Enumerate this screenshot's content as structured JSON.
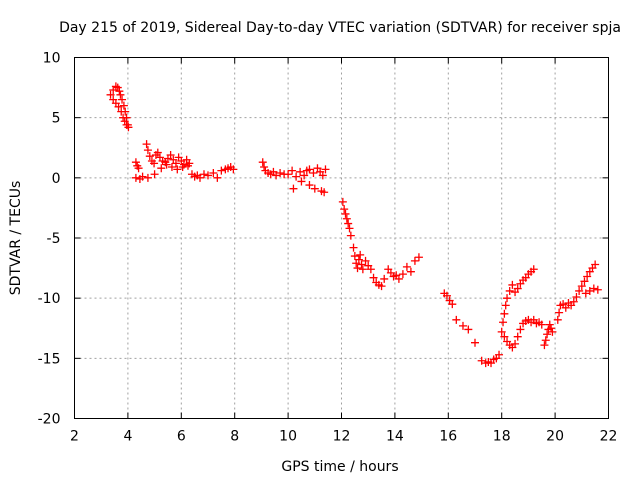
{
  "chart_data": {
    "type": "scatter",
    "title": "Day 215 of 2019, Sidereal Day-to-day VTEC variation (SDTVAR) for receiver spja",
    "xlabel": "GPS time / hours",
    "ylabel": "SDTVAR / TECUs",
    "xlim": [
      2,
      22
    ],
    "ylim": [
      -20,
      10
    ],
    "xticks": [
      2,
      4,
      6,
      8,
      10,
      12,
      14,
      16,
      18,
      20,
      22
    ],
    "xtick_labels": [
      "2",
      "4",
      "6",
      "8",
      "10",
      "12",
      "14",
      "16",
      "18",
      "20",
      "22"
    ],
    "yticks": [
      10,
      5,
      0,
      -5,
      -10,
      -15,
      -20
    ],
    "ytick_labels": [
      "10",
      "5",
      "0",
      "-5",
      "-10",
      "-15",
      "-20"
    ],
    "grid": true,
    "marker": "plus",
    "color": "#ff0000",
    "series": [
      {
        "name": "SDTVAR",
        "x": [
          3.35,
          3.45,
          3.55,
          3.62,
          3.68,
          3.72,
          3.78,
          3.85,
          3.9,
          3.95,
          4.0,
          3.45,
          3.55,
          3.65,
          3.75,
          3.82,
          3.88,
          3.95,
          4.02,
          4.3,
          4.35,
          4.4,
          4.3,
          4.45,
          4.55,
          4.7,
          4.75,
          4.82,
          4.9,
          4.98,
          5.05,
          5.12,
          5.2,
          5.3,
          5.4,
          5.5,
          5.6,
          5.7,
          5.8,
          5.9,
          6.0,
          6.1,
          6.2,
          6.3,
          4.75,
          5.0,
          5.25,
          5.45,
          5.65,
          5.85,
          6.05,
          6.25,
          6.4,
          6.5,
          6.6,
          6.7,
          6.85,
          7.0,
          7.2,
          7.35,
          7.5,
          7.65,
          7.75,
          7.85,
          7.95,
          9.05,
          9.1,
          9.15,
          9.25,
          9.35,
          9.45,
          9.55,
          9.7,
          9.85,
          10.0,
          10.15,
          10.3,
          10.45,
          10.6,
          10.7,
          10.8,
          10.95,
          11.1,
          11.2,
          11.3,
          11.4,
          10.2,
          10.5,
          10.8,
          11.0,
          11.25,
          11.35,
          12.05,
          12.1,
          12.15,
          12.2,
          12.25,
          12.3,
          12.35,
          12.45,
          12.5,
          12.55,
          12.6,
          12.65,
          12.7,
          12.75,
          12.8,
          12.9,
          13.0,
          13.1,
          13.2,
          13.3,
          13.4,
          13.5,
          13.6,
          13.75,
          13.85,
          13.95,
          14.05,
          14.15,
          14.3,
          14.45,
          14.6,
          14.75,
          14.9,
          15.85,
          15.95,
          16.05,
          16.15,
          16.3,
          16.55,
          16.75,
          17.0,
          17.25,
          17.4,
          17.5,
          17.6,
          17.7,
          17.8,
          17.9,
          18.0,
          18.05,
          18.1,
          18.15,
          18.2,
          18.3,
          18.4,
          18.5,
          18.6,
          18.7,
          18.8,
          18.9,
          19.0,
          19.1,
          19.2,
          18.1,
          18.2,
          18.3,
          18.4,
          18.5,
          18.6,
          18.7,
          18.8,
          18.9,
          19.0,
          19.1,
          19.2,
          19.3,
          19.4,
          19.5,
          19.6,
          19.65,
          19.7,
          19.75,
          19.8,
          19.85,
          19.9,
          20.1,
          20.15,
          20.2,
          20.3,
          20.4,
          20.5,
          20.6,
          20.7,
          20.8,
          20.9,
          21.0,
          21.1,
          21.2,
          21.3,
          21.4,
          21.5,
          21.15,
          21.3,
          21.45,
          21.6
        ],
        "y": [
          6.9,
          7.3,
          7.6,
          7.5,
          7.2,
          6.9,
          6.5,
          6.0,
          5.5,
          5.0,
          4.4,
          6.5,
          6.2,
          5.9,
          5.5,
          5.0,
          4.7,
          4.4,
          4.2,
          1.3,
          1.0,
          0.8,
          0.0,
          -0.1,
          0.1,
          2.8,
          2.3,
          1.8,
          1.4,
          1.2,
          1.9,
          2.1,
          1.7,
          1.4,
          1.3,
          1.6,
          1.9,
          1.5,
          1.2,
          1.7,
          1.4,
          1.1,
          1.5,
          1.2,
          0.0,
          0.3,
          0.8,
          1.1,
          0.9,
          0.7,
          0.9,
          1.0,
          0.3,
          0.1,
          0.2,
          0.0,
          0.3,
          0.2,
          0.4,
          0.0,
          0.6,
          0.7,
          0.8,
          0.9,
          0.7,
          1.3,
          0.9,
          0.6,
          0.4,
          0.3,
          0.5,
          0.2,
          0.4,
          0.3,
          0.3,
          0.6,
          0.1,
          0.5,
          0.2,
          0.6,
          0.7,
          0.4,
          0.8,
          0.5,
          0.2,
          0.7,
          -0.9,
          -0.3,
          -0.6,
          -0.9,
          -1.1,
          -1.2,
          -2.0,
          -2.6,
          -3.0,
          -3.4,
          -3.8,
          -4.2,
          -4.8,
          -5.8,
          -6.5,
          -7.1,
          -7.5,
          -6.8,
          -6.4,
          -7.2,
          -7.6,
          -6.9,
          -7.3,
          -7.6,
          -8.3,
          -8.7,
          -8.9,
          -9.0,
          -8.4,
          -7.6,
          -7.9,
          -8.2,
          -8.1,
          -8.4,
          -8.0,
          -7.4,
          -7.8,
          -6.9,
          -6.6,
          -9.6,
          -9.8,
          -10.2,
          -10.5,
          -11.8,
          -12.3,
          -12.6,
          -13.7,
          -15.2,
          -15.4,
          -15.3,
          -15.4,
          -15.1,
          -15.0,
          -14.7,
          -12.8,
          -12.0,
          -11.3,
          -10.6,
          -10.0,
          -9.4,
          -8.9,
          -9.5,
          -9.2,
          -8.8,
          -8.5,
          -8.3,
          -8.0,
          -7.8,
          -7.6,
          -13.2,
          -13.6,
          -13.9,
          -14.1,
          -13.8,
          -13.2,
          -12.6,
          -12.1,
          -11.9,
          -11.8,
          -12.0,
          -11.8,
          -12.1,
          -12.0,
          -12.2,
          -13.9,
          -13.5,
          -13.0,
          -12.6,
          -12.2,
          -12.5,
          -12.8,
          -11.8,
          -11.2,
          -10.6,
          -10.5,
          -10.8,
          -10.4,
          -10.6,
          -10.3,
          -9.9,
          -9.4,
          -9.0,
          -8.6,
          -8.2,
          -7.8,
          -7.5,
          -7.2,
          -9.6,
          -9.4,
          -9.2,
          -9.3
        ]
      }
    ]
  }
}
